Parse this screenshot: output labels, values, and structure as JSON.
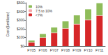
{
  "chart_data": {
    "type": "bar",
    "stacked": true,
    "ylabel": "Cost ($ millions)",
    "categories": [
      "FY05",
      "FY06",
      "FY07",
      "FY08",
      "FY09",
      "FY10",
      "FY11"
    ],
    "series": [
      {
        "name": "<7%",
        "color": "#d62728",
        "values": [
          40,
          95,
          150,
          200,
          250,
          300,
          350
        ]
      },
      {
        "name": "7.5 to 10%",
        "color": "#f4a6a6",
        "values": [
          5,
          5,
          5,
          5,
          5,
          5,
          5
        ]
      },
      {
        "name": "10%",
        "color": "#8fbc5a",
        "values": [
          20,
          40,
          60,
          80,
          100,
          120,
          140
        ]
      }
    ],
    "ylim": [
      0,
      500
    ],
    "yticks": [
      {
        "value": 0,
        "label": "$0"
      },
      {
        "value": 100,
        "label": "$100"
      },
      {
        "value": 200,
        "label": "$200"
      },
      {
        "value": 300,
        "label": "$300"
      },
      {
        "value": 400,
        "label": "$400"
      },
      {
        "value": 500,
        "label": "$500"
      }
    ],
    "legend": "upper left",
    "grid": false
  }
}
